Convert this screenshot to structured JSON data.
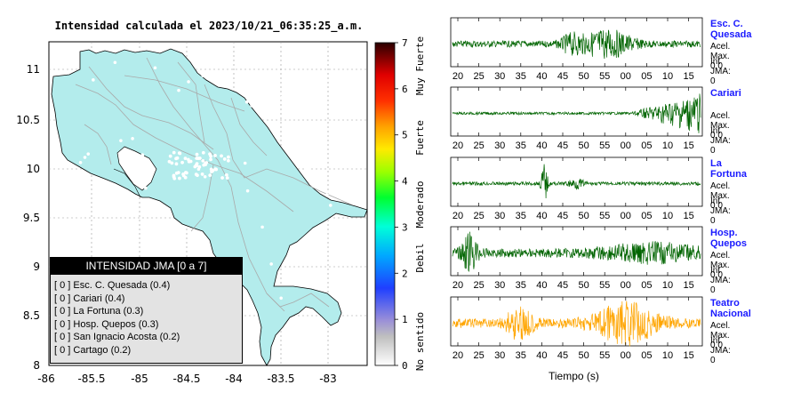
{
  "map": {
    "title": "Intensidad calculada el 2023/10/21_06:35:25_a.m.",
    "lat_ticks": [
      "11",
      "10.5",
      "10",
      "9.5",
      "9",
      "8.5",
      "8"
    ],
    "lon_ticks": [
      "-86",
      "-85.5",
      "-85",
      "-84.5",
      "-84",
      "-83.5",
      "-83"
    ],
    "colors": {
      "land": "#b3ecec",
      "roads": "#a9a9a9",
      "border": "#000000"
    }
  },
  "legend": {
    "header": "INTENSIDAD JMA [0 a 7]",
    "rows": [
      {
        "value": "[ 0 ]",
        "label": "Esc. C. Quesada (0.4)"
      },
      {
        "value": "[ 0 ]",
        "label": "Cariari (0.4)"
      },
      {
        "value": "[ 0 ]",
        "label": "La Fortuna (0.3)"
      },
      {
        "value": "[ 0 ]",
        "label": "Hosp. Quepos (0.3)"
      },
      {
        "value": "[ 0 ]",
        "label": "San Ignacio Acosta (0.2)"
      },
      {
        "value": "[ 0 ]",
        "label": "Cartago (0.2)"
      }
    ]
  },
  "scale": {
    "ticks": [
      "7",
      "6",
      "5",
      "4",
      "3",
      "2",
      "1",
      "0"
    ],
    "labels": [
      "Muy Fuerte",
      "Fuerte",
      "Moderado",
      "Debil",
      "No sentido"
    ]
  },
  "stations": [
    {
      "name": "Esc. C. Quesada",
      "accel": "Acel. Max. 0.0",
      "int": "Int JMA: 0",
      "color": "#006400"
    },
    {
      "name": "Cariari",
      "accel": "Acel. Max. 0.0",
      "int": "Int JMA: 0",
      "color": "#006400"
    },
    {
      "name": "La Fortuna",
      "accel": "Acel. Max. 0.0",
      "int": "Int JMA: 0",
      "color": "#006400"
    },
    {
      "name": "Hosp. Quepos",
      "accel": "Acel. Max. 0.0",
      "int": "Int JMA: 0",
      "color": "#006400"
    },
    {
      "name": "Teatro Nacional",
      "accel": "Acel. Max. 0.0",
      "int": "Int JMA: 0",
      "color": "#ffa500"
    }
  ],
  "time_ticks": [
    [
      "20",
      "25",
      "30",
      "35",
      "40",
      "45",
      "50",
      "55",
      "00",
      "05",
      "10",
      "15"
    ],
    [
      "20",
      "25",
      "30",
      "35",
      "40",
      "45",
      "50",
      "55",
      "00",
      "05",
      "10",
      "15"
    ],
    [
      "20",
      "25",
      "30",
      "35",
      "40",
      "45",
      "50",
      "55",
      "00",
      "05",
      "10",
      "15"
    ],
    [
      "20",
      "25",
      "30",
      "35",
      "40",
      "45",
      "50",
      "55",
      "00",
      "05",
      "10",
      "15"
    ],
    [
      "20",
      "25",
      "30",
      "35",
      "40",
      "45",
      "50",
      "55",
      "00",
      "05",
      "10",
      "15"
    ]
  ],
  "xlabel": "Tiempo (s)"
}
